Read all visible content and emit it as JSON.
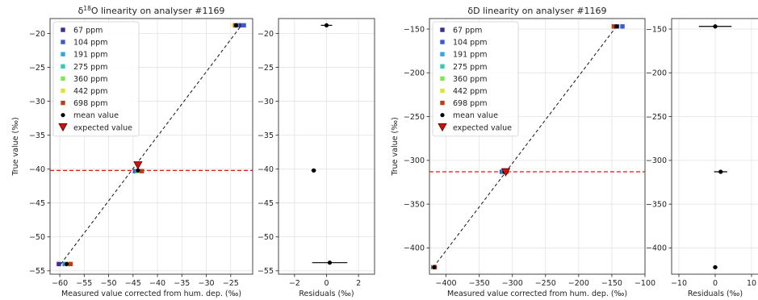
{
  "chart_data": [
    {
      "type": "scatter",
      "title": "δ18O linearity on analyser #1169",
      "xlabel": "Measured value corrected from hum. dep. (‰)",
      "ylabel": "True value (‰)",
      "xlim": [
        -62,
        -20.5
      ],
      "ylim": [
        -55.5,
        -17.8
      ],
      "xticks": [
        -60,
        -55,
        -50,
        -45,
        -40,
        -35,
        -30,
        -25,
        -20
      ],
      "yticks": [
        -55,
        -50,
        -45,
        -40,
        -35,
        -30,
        -25,
        -20
      ],
      "grid": true,
      "legend_position": "top-left",
      "expected_line_y": -40.2,
      "fit_line": [
        [
          -59.8,
          -54.0
        ],
        [
          -22.8,
          -18.8
        ]
      ],
      "series": [
        {
          "name": "67 ppm",
          "color": "#3c2f8f",
          "marker": "square",
          "points": [
            [
              -60.2,
              -54.0
            ],
            [
              -44.4,
              -40.3
            ],
            [
              -23.2,
              -18.8
            ]
          ]
        },
        {
          "name": "104 ppm",
          "color": "#3b5dc9",
          "marker": "square",
          "points": [
            [
              -59.0,
              -54.0
            ],
            [
              -44.6,
              -40.3
            ],
            [
              -22.3,
              -18.8
            ]
          ]
        },
        {
          "name": "191 ppm",
          "color": "#2fa7e2",
          "marker": "square",
          "points": [
            [
              -58.8,
              -54.0
            ],
            [
              -44.2,
              -40.3
            ],
            [
              -23.8,
              -18.8
            ]
          ]
        },
        {
          "name": "275 ppm",
          "color": "#2ad0b1",
          "marker": "square",
          "points": [
            [
              -58.6,
              -54.0
            ],
            [
              -44.0,
              -40.3
            ],
            [
              -24.0,
              -18.8
            ]
          ]
        },
        {
          "name": "360 ppm",
          "color": "#7ae84f",
          "marker": "square",
          "points": [
            [
              -58.4,
              -54.0
            ],
            [
              -43.9,
              -40.3
            ],
            [
              -24.1,
              -18.8
            ]
          ]
        },
        {
          "name": "442 ppm",
          "color": "#d6e82c",
          "marker": "square",
          "points": [
            [
              -58.2,
              -54.0
            ],
            [
              -43.6,
              -40.3
            ],
            [
              -24.3,
              -18.8
            ]
          ]
        },
        {
          "name": "698 ppm",
          "color": "#c23a18",
          "marker": "square",
          "points": [
            [
              -57.8,
              -54.0
            ],
            [
              -43.2,
              -40.3
            ],
            [
              -24.0,
              -18.8
            ]
          ]
        }
      ],
      "mean_values": {
        "name": "mean value",
        "color": "#000000",
        "points": [
          [
            -58.6,
            -54.0
          ],
          [
            -44.0,
            -40.2
          ],
          [
            -23.9,
            -18.8
          ]
        ]
      },
      "expected_values": {
        "name": "expected value",
        "color": "#cc1111",
        "points": [
          [
            -44.0,
            -39.5
          ]
        ]
      }
    },
    {
      "type": "scatter",
      "title": "",
      "xlabel": "Residuals (‰)",
      "ylabel": "",
      "xlim": [
        -3,
        3
      ],
      "ylim": [
        -55.5,
        -17.8
      ],
      "xticks": [
        -2,
        0,
        2
      ],
      "yticks": [
        -55,
        -50,
        -45,
        -40,
        -35,
        -30,
        -25,
        -20
      ],
      "grid": true,
      "points": [
        {
          "x": 0.0,
          "y": -18.8,
          "xerr": 0.35
        },
        {
          "x": -0.8,
          "y": -40.2,
          "xerr": 0.15
        },
        {
          "x": 0.2,
          "y": -53.8,
          "xerr": 1.1
        }
      ]
    },
    {
      "type": "scatter",
      "title": "δD linearity on analyser #1169",
      "xlabel": "Measured value corrected from hum. dep. (‰)",
      "ylabel": "True value (‰)",
      "xlim": [
        -425,
        -100
      ],
      "ylim": [
        -430,
        -138
      ],
      "xticks": [
        -400,
        -350,
        -300,
        -250,
        -200,
        -150,
        -100
      ],
      "yticks": [
        -400,
        -350,
        -300,
        -250,
        -200,
        -150
      ],
      "grid": true,
      "legend_position": "top-left",
      "expected_line_y": -313,
      "fit_line": [
        [
          -419,
          -422
        ],
        [
          -143,
          -147
        ]
      ],
      "series": [
        {
          "name": "67 ppm",
          "color": "#3c2f8f",
          "marker": "square",
          "points": [
            [
              -419,
              -422
            ],
            [
              -313,
              -313
            ],
            [
              -142,
              -147
            ]
          ]
        },
        {
          "name": "104 ppm",
          "color": "#3b5dc9",
          "marker": "square",
          "points": [
            [
              -418,
              -422
            ],
            [
              -316,
              -313
            ],
            [
              -134,
              -147
            ]
          ]
        },
        {
          "name": "191 ppm",
          "color": "#2fa7e2",
          "marker": "square",
          "points": [
            [
              -418,
              -422
            ],
            [
              -313,
              -313
            ],
            [
              -144,
              -147
            ]
          ]
        },
        {
          "name": "275 ppm",
          "color": "#2ad0b1",
          "marker": "square",
          "points": [
            [
              -418,
              -422
            ],
            [
              -312,
              -313
            ],
            [
              -145,
              -147
            ]
          ]
        },
        {
          "name": "360 ppm",
          "color": "#7ae84f",
          "marker": "square",
          "points": [
            [
              -418,
              -422
            ],
            [
              -311,
              -313
            ],
            [
              -146,
              -147
            ]
          ]
        },
        {
          "name": "442 ppm",
          "color": "#d6e82c",
          "marker": "square",
          "points": [
            [
              -418,
              -422
            ],
            [
              -310,
              -313
            ],
            [
              -147,
              -147
            ]
          ]
        },
        {
          "name": "698 ppm",
          "color": "#c23a18",
          "marker": "square",
          "points": [
            [
              -417,
              -422
            ],
            [
              -309,
              -313
            ],
            [
              -147,
              -147
            ]
          ]
        }
      ],
      "mean_values": {
        "name": "mean value",
        "color": "#000000",
        "points": [
          [
            -418,
            -422
          ],
          [
            -312,
            -313
          ],
          [
            -143,
            -147
          ]
        ]
      },
      "expected_values": {
        "name": "expected value",
        "color": "#cc1111",
        "points": [
          [
            -310,
            -314
          ]
        ]
      }
    },
    {
      "type": "scatter",
      "title": "",
      "xlabel": "Residuals (‰)",
      "ylabel": "",
      "xlim": [
        -12,
        12
      ],
      "ylim": [
        -430,
        -138
      ],
      "xticks": [
        -10,
        0,
        10
      ],
      "yticks": [
        -400,
        -350,
        -300,
        -250,
        -200,
        -150
      ],
      "grid": true,
      "points": [
        {
          "x": 0.0,
          "y": -147,
          "xerr": 4.5
        },
        {
          "x": 1.5,
          "y": -313,
          "xerr": 1.8
        },
        {
          "x": 0.0,
          "y": -422,
          "xerr": 0.6
        }
      ]
    }
  ]
}
